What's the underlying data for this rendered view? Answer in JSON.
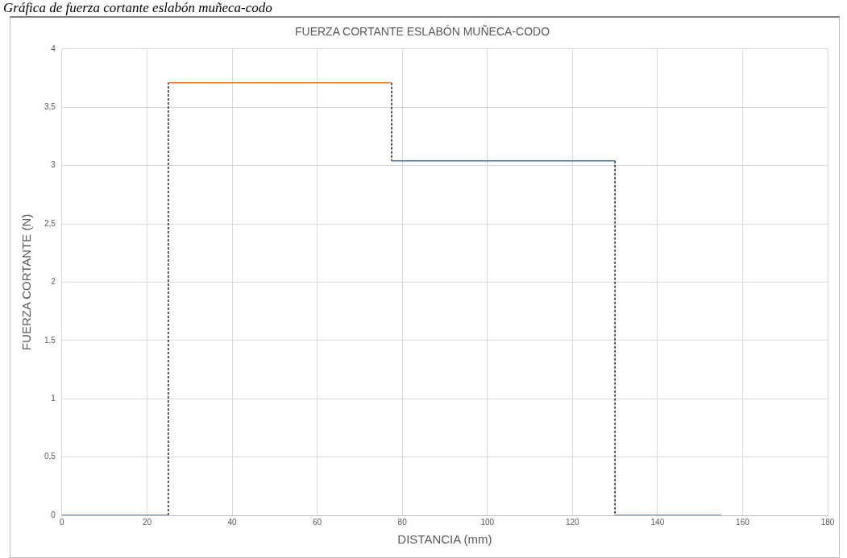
{
  "chart_data": {
    "type": "line",
    "title": "FUERZA CORTANTE ESLABÓN MUÑECA-CODO",
    "xlabel": "DISTANCIA (mm)",
    "ylabel": "FUERZA CORTANTE (N)",
    "annotations": [
      "Gráfica de fuerza cortante eslabón muñeca-codo"
    ],
    "series": [
      {
        "color": "#4472c4",
        "x": [
          0,
          25
        ],
        "values": [
          0,
          0
        ]
      },
      {
        "color": "#ed7d31",
        "x": [
          25,
          77.5
        ],
        "values": [
          3.71,
          3.71
        ]
      },
      {
        "color": "#4472c4",
        "x": [
          77.5,
          130
        ],
        "values": [
          3.04,
          3.04
        ]
      },
      {
        "color": "#4472c4",
        "x": [
          130,
          155
        ],
        "values": [
          0,
          0
        ]
      },
      {
        "color": "#000000",
        "line_style": "dashed",
        "x": [
          25,
          25
        ],
        "values": [
          0,
          3.71
        ]
      },
      {
        "color": "#000000",
        "line_style": "dashed",
        "x": [
          77.5,
          77.5
        ],
        "values": [
          3.71,
          3.04
        ]
      },
      {
        "color": "#000000",
        "line_style": "dashed",
        "x": [
          130,
          130
        ],
        "values": [
          3.04,
          0
        ]
      }
    ],
    "xlim": [
      0,
      180
    ],
    "xticks": [
      0,
      20,
      40,
      60,
      80,
      100,
      120,
      140,
      160,
      180
    ],
    "ylim": [
      0,
      4
    ],
    "yticks": [
      0,
      {
        "value": 0.5,
        "label": "0,5"
      },
      1,
      {
        "value": 1.5,
        "label": "1,5"
      },
      2,
      {
        "value": 2.5,
        "label": "2,5"
      },
      3,
      {
        "value": 3.5,
        "label": "3,5"
      },
      4
    ],
    "grid": true,
    "legend": false,
    "marker": "none",
    "line_style": "solid"
  }
}
